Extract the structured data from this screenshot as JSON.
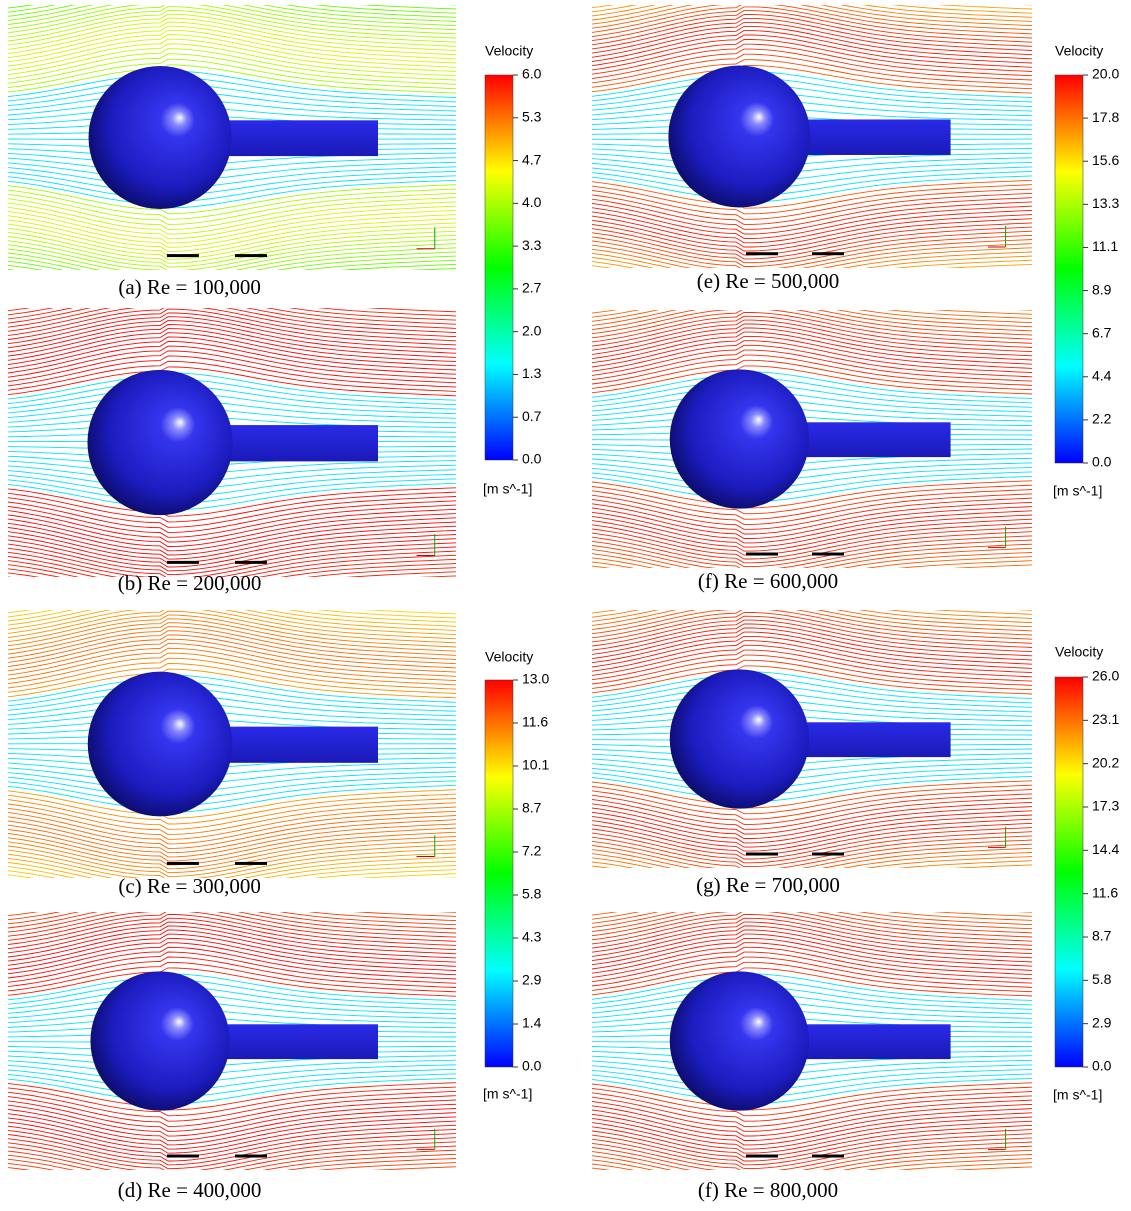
{
  "panels": [
    {
      "caption": "(a) Re = 100,000"
    },
    {
      "caption": "(b) Re = 200,000"
    },
    {
      "caption": "(c) Re = 300,000"
    },
    {
      "caption": "(d) Re = 400,000"
    },
    {
      "caption": "(e) Re = 500,000"
    },
    {
      "caption": "(f) Re = 600,000"
    },
    {
      "caption": "(g) Re = 700,000"
    },
    {
      "caption": "(f) Re = 800,000"
    }
  ],
  "colorbars": [
    {
      "title": "Velocity",
      "ticks": [
        "6.0",
        "5.3",
        "4.7",
        "4.0",
        "3.3",
        "2.7",
        "2.0",
        "1.3",
        "0.7",
        "0.0"
      ],
      "unit": "[m s^-1]"
    },
    {
      "title": "Velocity",
      "ticks": [
        "13.0",
        "11.6",
        "10.1",
        "8.7",
        "7.2",
        "5.8",
        "4.3",
        "2.9",
        "1.4",
        "0.0"
      ],
      "unit": "[m s^-1]"
    },
    {
      "title": "Velocity",
      "ticks": [
        "20.0",
        "17.8",
        "15.6",
        "13.3",
        "11.1",
        "8.9",
        "6.7",
        "4.4",
        "2.2",
        "0.0"
      ],
      "unit": "[m s^-1]"
    },
    {
      "title": "Velocity",
      "ticks": [
        "26.0",
        "23.1",
        "20.2",
        "17.3",
        "14.4",
        "11.6",
        "8.7",
        "5.8",
        "2.9",
        "0.0"
      ],
      "unit": "[m s^-1]"
    }
  ]
}
